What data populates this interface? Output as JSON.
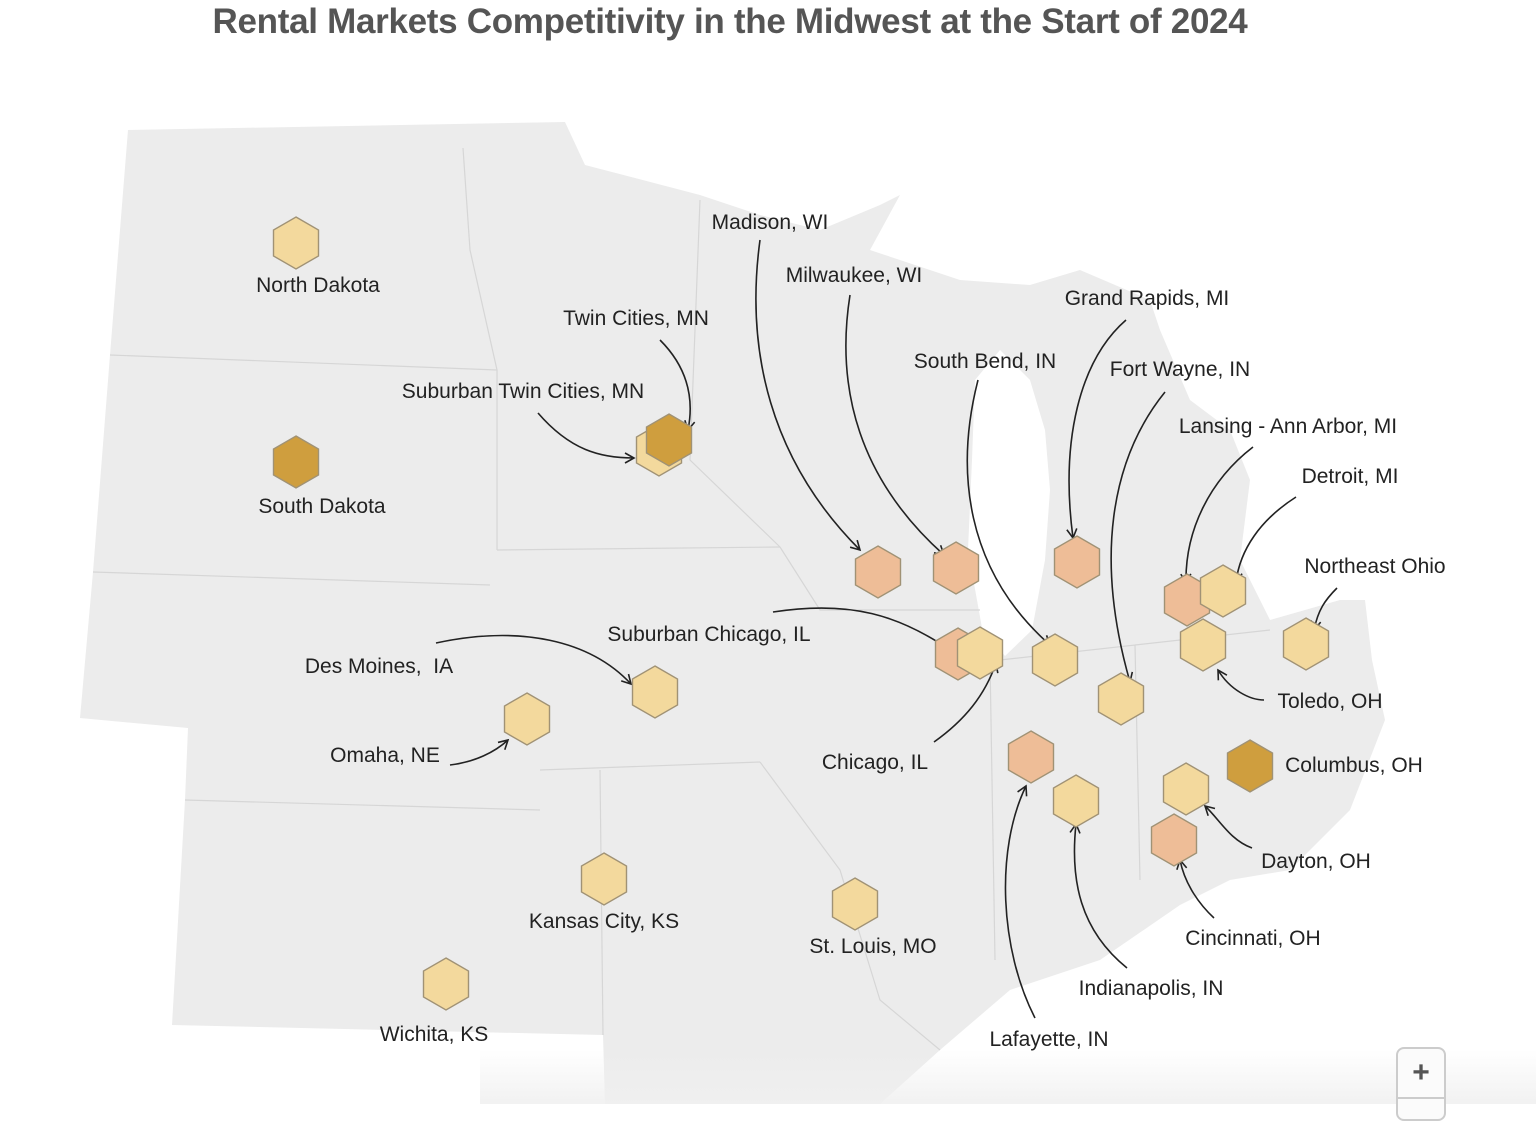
{
  "title": "Rental Markets Competitivity in the Midwest at the Start of 2024",
  "colors": {
    "light": "#f3d99d",
    "medium": "#eebd97",
    "dark": "#cf9e3e",
    "land": "#ececec",
    "water": "#ffffff"
  },
  "markers": [
    {
      "label": "North Dakota",
      "color": "#f3d99d"
    },
    {
      "label": "South Dakota",
      "color": "#cf9e3e"
    },
    {
      "label": "Suburban Twin Cities, MN",
      "color": "#f3d99d"
    },
    {
      "label": "Twin Cities, MN",
      "color": "#cf9e3e"
    },
    {
      "label": "Madison, WI",
      "color": "#eebd97"
    },
    {
      "label": "Milwaukee, WI",
      "color": "#eebd97"
    },
    {
      "label": "Grand Rapids, MI",
      "color": "#eebd97"
    },
    {
      "label": "Lansing - Ann Arbor, MI",
      "color": "#eebd97"
    },
    {
      "label": "Detroit, MI",
      "color": "#f3d99d"
    },
    {
      "label": "Toledo, OH",
      "color": "#f3d99d"
    },
    {
      "label": "Northeast Ohio",
      "color": "#f3d99d"
    },
    {
      "label": "Suburban Chicago, IL",
      "color": "#eebd97"
    },
    {
      "label": "Chicago, IL",
      "color": "#f3d99d"
    },
    {
      "label": "South Bend, IN",
      "color": "#f3d99d"
    },
    {
      "label": "Fort Wayne, IN",
      "color": "#f3d99d"
    },
    {
      "label": "Des Moines,  IA",
      "color": "#f3d99d"
    },
    {
      "label": "Omaha, NE",
      "color": "#f3d99d"
    },
    {
      "label": "Lafayette, IN",
      "color": "#eebd97"
    },
    {
      "label": "Indianapolis, IN",
      "color": "#f3d99d"
    },
    {
      "label": "Columbus, OH",
      "color": "#cf9e3e"
    },
    {
      "label": "Dayton, OH",
      "color": "#f3d99d"
    },
    {
      "label": "Cincinnati, OH",
      "color": "#eebd97"
    },
    {
      "label": "Kansas City, KS",
      "color": "#f3d99d"
    },
    {
      "label": "St. Louis, MO",
      "color": "#f3d99d"
    },
    {
      "label": "Wichita, KS",
      "color": "#f3d99d"
    }
  ],
  "controls": {
    "zoom_in": "+"
  }
}
